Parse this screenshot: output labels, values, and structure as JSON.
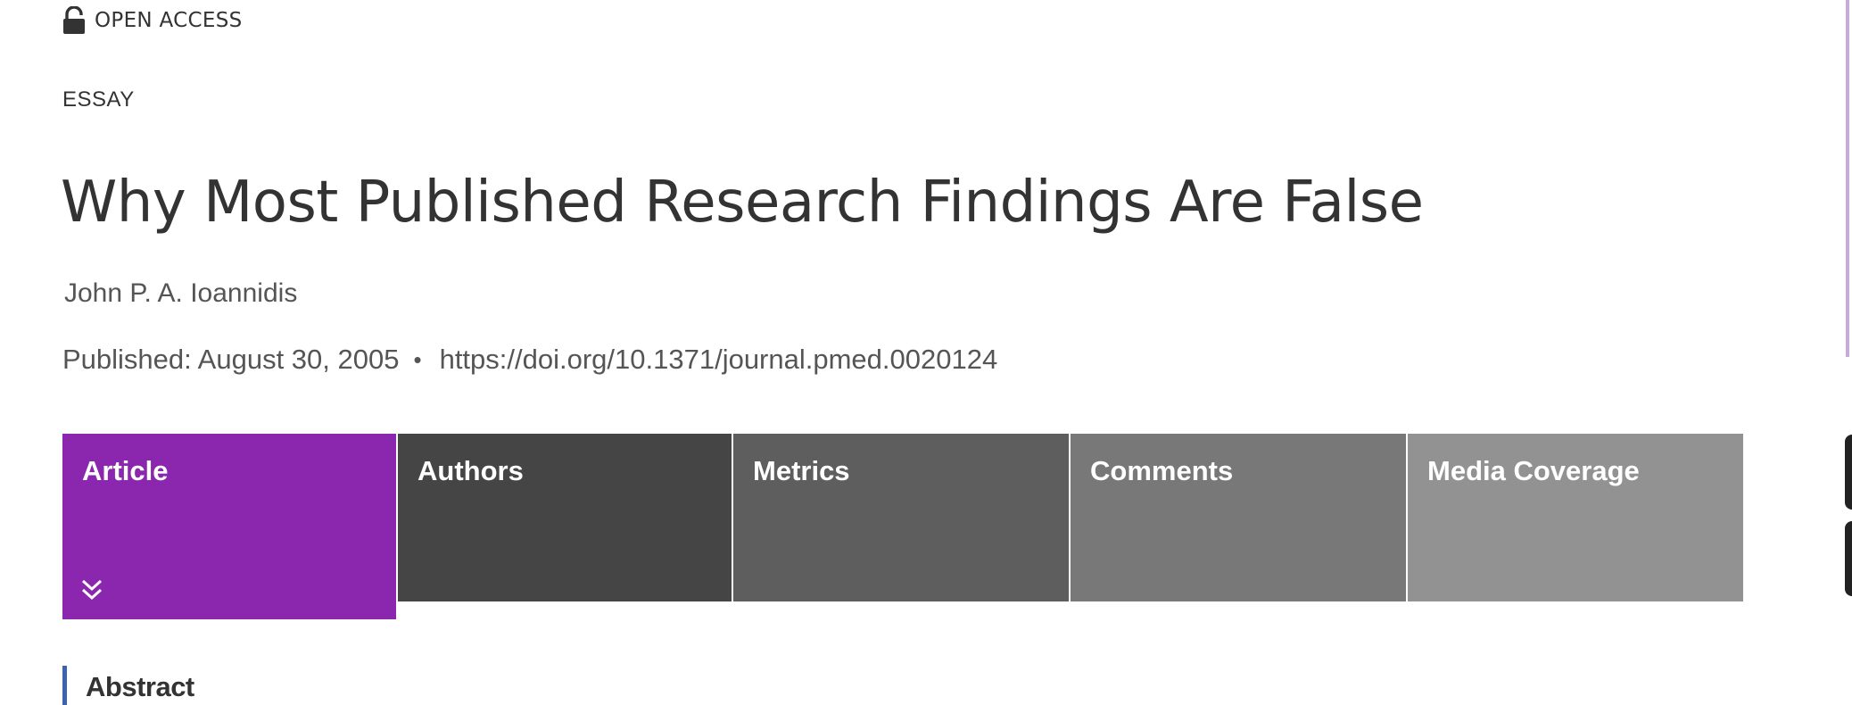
{
  "header": {
    "open_access_label": "OPEN ACCESS",
    "article_type": "ESSAY"
  },
  "article": {
    "title": "Why Most Published Research Findings Are False",
    "author": "John P. A. Ioannidis",
    "published": "Published: August 30, 2005",
    "separator": "•",
    "doi": "https://doi.org/10.1371/journal.pmed.0020124"
  },
  "tabs": [
    {
      "label": "Article",
      "color": "#8a27ae",
      "active": true
    },
    {
      "label": "Authors",
      "color": "#454545",
      "active": false
    },
    {
      "label": "Metrics",
      "color": "#5e5e5e",
      "active": false
    },
    {
      "label": "Comments",
      "color": "#787878",
      "active": false
    },
    {
      "label": "Media Coverage",
      "color": "#929292",
      "active": false
    }
  ],
  "section": {
    "abstract_heading": "Abstract"
  },
  "colors": {
    "accent_purple": "#8a27ae",
    "section_bar_blue": "#3c63af",
    "text_dark": "#333333",
    "text_muted": "#555555"
  },
  "icons": {
    "open_access": "unlocked-padlock-icon",
    "tab_expand": "double-chevron-down-icon"
  }
}
